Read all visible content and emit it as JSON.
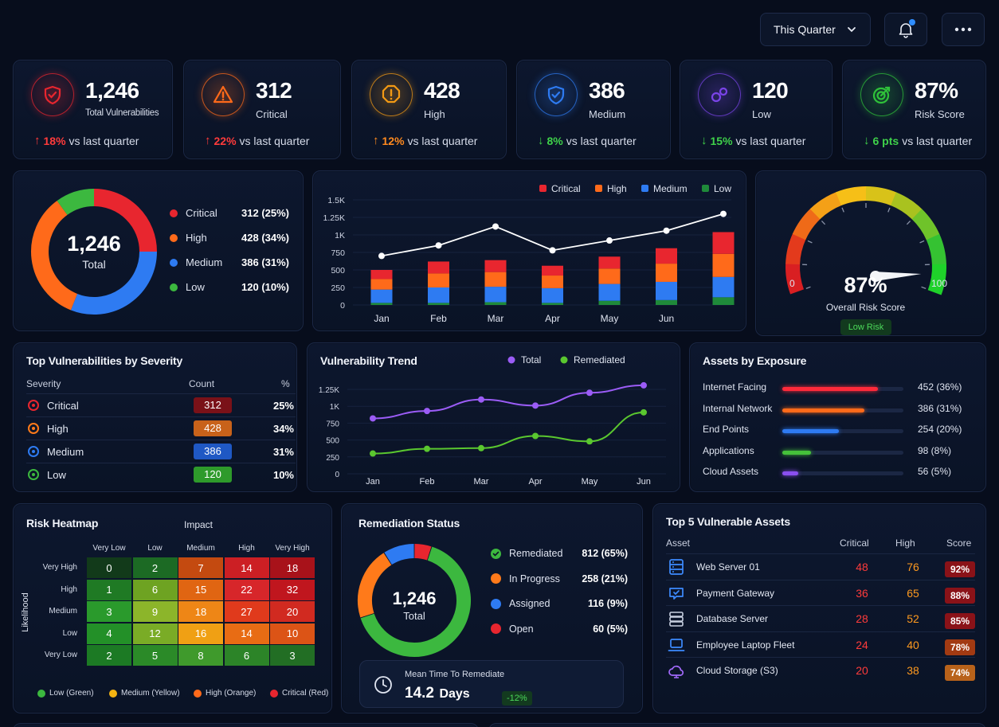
{
  "header": {
    "period": "This Quarter"
  },
  "kpis": [
    {
      "value": "1,246",
      "label": "Total Vulnerabilities",
      "trend_pct": "18%",
      "trend_text": "vs last quarter",
      "direction": "up",
      "color": "#e8262f",
      "trend_color": "#ff3b3b",
      "icon": "shield-alert-icon"
    },
    {
      "value": "312",
      "label": "Critical",
      "trend_pct": "22%",
      "trend_text": "vs last quarter",
      "direction": "up",
      "color": "#ff6a1a",
      "trend_color": "#ff3b3b",
      "icon": "warning-triangle-icon"
    },
    {
      "value": "428",
      "label": "High",
      "trend_pct": "12%",
      "trend_text": "vs last quarter",
      "direction": "up",
      "color": "#f39a14",
      "trend_color": "#ff8a1f",
      "icon": "alert-octagon-icon"
    },
    {
      "value": "386",
      "label": "Medium",
      "trend_pct": "8%",
      "trend_text": "vs last quarter",
      "direction": "down",
      "color": "#2e7bf2",
      "trend_color": "#3fd14a",
      "icon": "shield-check-icon"
    },
    {
      "value": "120",
      "label": "Low",
      "trend_pct": "15%",
      "trend_text": "vs last quarter",
      "direction": "down",
      "color": "#7a44e8",
      "trend_color": "#3fd14a",
      "icon": "bubbles-icon"
    },
    {
      "value": "87%",
      "label": "Risk Score",
      "trend_pct": "6 pts",
      "trend_text": "vs last quarter",
      "direction": "down",
      "color": "#2fc23a",
      "trend_color": "#3fd14a",
      "icon": "target-icon"
    }
  ],
  "severity_donut": {
    "center_value": "1,246",
    "center_label": "Total",
    "items": [
      {
        "label": "Critical",
        "value": "312 (25%)",
        "share": 25,
        "color": "#e8262f"
      },
      {
        "label": "High",
        "value": "428 (34%)",
        "share": 34,
        "color": "#ff6a1a"
      },
      {
        "label": "Medium",
        "value": "386 (31%)",
        "share": 31,
        "color": "#2e7bf2"
      },
      {
        "label": "Low",
        "value": "120 (10%)",
        "share": 10,
        "color": "#3cb83f"
      }
    ]
  },
  "chart_data": [
    {
      "type": "bar",
      "stacked": true,
      "categories": [
        "Jan",
        "Feb",
        "Mar",
        "Apr",
        "May",
        "Jun",
        ""
      ],
      "yticks": [
        "0",
        "250",
        "500",
        "750",
        "1K",
        "1.25K",
        "1.5K"
      ],
      "ylim": [
        0,
        1500
      ],
      "legend": "top-right",
      "series": [
        {
          "name": "Critical",
          "color": "#e8262f",
          "values": [
            130,
            170,
            170,
            140,
            170,
            220,
            310
          ]
        },
        {
          "name": "High",
          "color": "#ff6a1a",
          "values": [
            150,
            200,
            210,
            180,
            220,
            260,
            330
          ]
        },
        {
          "name": "Medium",
          "color": "#2e7bf2",
          "values": [
            190,
            220,
            220,
            210,
            240,
            260,
            290
          ]
        },
        {
          "name": "Low",
          "color": "#1f8a3a",
          "values": [
            30,
            30,
            40,
            30,
            60,
            70,
            110
          ]
        }
      ],
      "line": {
        "values": [
          700,
          850,
          1120,
          780,
          920,
          1060,
          1300
        ],
        "color": "#ffffff"
      }
    },
    {
      "type": "line",
      "title": "Vulnerability Trend",
      "categories": [
        "Jan",
        "Feb",
        "Mar",
        "Apr",
        "May",
        "Jun"
      ],
      "yticks": [
        "0",
        "250",
        "500",
        "750",
        "1K",
        "1.25K"
      ],
      "ylim": [
        0,
        1250
      ],
      "legend": "top-right",
      "series": [
        {
          "name": "Total",
          "color": "#9b5cf6",
          "values": [
            820,
            930,
            1100,
            1010,
            1200,
            1310
          ]
        },
        {
          "name": "Remediated",
          "color": "#5ac72f",
          "values": [
            300,
            370,
            380,
            560,
            480,
            910
          ]
        }
      ]
    }
  ],
  "risk_gauge": {
    "value": 87,
    "value_label": "87%",
    "label": "Overall Risk Score",
    "min": "0",
    "max": "100",
    "badge": "Low Risk"
  },
  "top_vulns": {
    "title": "Top Vulnerabilities by Severity",
    "headers": {
      "severity": "Severity",
      "count": "Count",
      "pct": "%"
    },
    "rows": [
      {
        "severity": "Critical",
        "count": "312",
        "pct": "25%",
        "color": "#e8262f",
        "badge_bg": "#7a1118"
      },
      {
        "severity": "High",
        "count": "428",
        "pct": "34%",
        "color": "#ff7a1a",
        "badge_bg": "#c8621a"
      },
      {
        "severity": "Medium",
        "count": "386",
        "pct": "31%",
        "color": "#2e7bf2",
        "badge_bg": "#1f58c4"
      },
      {
        "severity": "Low",
        "count": "120",
        "pct": "10%",
        "color": "#3cb83f",
        "badge_bg": "#2e9a2b"
      }
    ]
  },
  "exposure": {
    "title": "Assets by Exposure",
    "rows": [
      {
        "label": "Internet Facing",
        "value": "452 (36%)",
        "share": 0.79,
        "color": "#ff2a3a"
      },
      {
        "label": "Internal Network",
        "value": "386 (31%)",
        "share": 0.68,
        "color": "#ff6a1a"
      },
      {
        "label": "End Points",
        "value": "254 (20%)",
        "share": 0.47,
        "color": "#2e7bf2"
      },
      {
        "label": "Applications",
        "value": "98 (8%)",
        "share": 0.24,
        "color": "#45c13a"
      },
      {
        "label": "Cloud Assets",
        "value": "56 (5%)",
        "share": 0.13,
        "color": "#8a4ff0"
      }
    ]
  },
  "heatmap": {
    "title": "Risk Heatmap",
    "impact_label": "Impact",
    "likelihood_label": "Likelihood",
    "columns": [
      "Very Low",
      "Low",
      "Medium",
      "High",
      "Very High"
    ],
    "rows": [
      {
        "label": "Very High",
        "values": [
          "0",
          "2",
          "7",
          "14",
          "18"
        ],
        "colors": [
          "#123a1a",
          "#1c6a24",
          "#c44a10",
          "#cc1f24",
          "#a8121a"
        ]
      },
      {
        "label": "High",
        "values": [
          "1",
          "6",
          "15",
          "22",
          "32"
        ],
        "colors": [
          "#1f7a24",
          "#6ea322",
          "#e06512",
          "#d7262a",
          "#c0161e"
        ]
      },
      {
        "label": "Medium",
        "values": [
          "3",
          "9",
          "18",
          "27",
          "20"
        ],
        "colors": [
          "#2a9a2c",
          "#8cb52a",
          "#ee8616",
          "#e03a1c",
          "#d12a20"
        ]
      },
      {
        "label": "Low",
        "values": [
          "4",
          "12",
          "16",
          "14",
          "10"
        ],
        "colors": [
          "#239028",
          "#7aac26",
          "#f0a014",
          "#e86c14",
          "#dc5416"
        ]
      },
      {
        "label": "Very Low",
        "values": [
          "2",
          "5",
          "8",
          "6",
          "3"
        ],
        "colors": [
          "#1c7a24",
          "#2b8a28",
          "#3f9a2c",
          "#2c8428",
          "#226e24"
        ]
      }
    ],
    "legend": [
      {
        "label": "Low (Green)",
        "color": "#3cb83f"
      },
      {
        "label": "Medium (Yellow)",
        "color": "#f4b312"
      },
      {
        "label": "High (Orange)",
        "color": "#ff6a1a"
      },
      {
        "label": "Critical (Red)",
        "color": "#e8262f"
      }
    ]
  },
  "remediation": {
    "title": "Remediation Status",
    "center_value": "1,246",
    "center_label": "Total",
    "items": [
      {
        "label": "Remediated",
        "value": "812 (65%)",
        "share": 65,
        "color": "#3cb83f",
        "icon": "check-circle-icon"
      },
      {
        "label": "In Progress",
        "value": "258 (21%)",
        "share": 21,
        "color": "#ff7a1a",
        "icon": "progress-dot-icon"
      },
      {
        "label": "Assigned",
        "value": "116 (9%)",
        "share": 9,
        "color": "#2e7bf2",
        "icon": "assigned-dot-icon"
      },
      {
        "label": "Open",
        "value": "60 (5%)",
        "share": 5,
        "color": "#e8262f",
        "icon": "open-dot-icon"
      }
    ],
    "mttr_label": "Mean Time To Remediate",
    "mttr_value": "14.2",
    "mttr_unit": "Days",
    "mttr_change": "-12%"
  },
  "assets": {
    "title": "Top 5 Vulnerable Assets",
    "headers": {
      "asset": "Asset",
      "critical": "Critical",
      "high": "High",
      "score": "Score"
    },
    "rows": [
      {
        "name": "Web Server 01",
        "critical": "48",
        "high": "76",
        "score": "92%",
        "score_bg": "#8a1218",
        "icon": "server-icon",
        "icon_color": "#3d8bff"
      },
      {
        "name": "Payment Gateway",
        "critical": "36",
        "high": "65",
        "score": "88%",
        "score_bg": "#8a1218",
        "icon": "card-icon",
        "icon_color": "#3d8bff"
      },
      {
        "name": "Database Server",
        "critical": "28",
        "high": "52",
        "score": "85%",
        "score_bg": "#8a1218",
        "icon": "database-icon",
        "icon_color": "#c8d0e0"
      },
      {
        "name": "Employee Laptop Fleet",
        "critical": "24",
        "high": "40",
        "score": "78%",
        "score_bg": "#a23a12",
        "icon": "laptop-icon",
        "icon_color": "#3d8bff"
      },
      {
        "name": "Cloud Storage (S3)",
        "critical": "20",
        "high": "38",
        "score": "74%",
        "score_bg": "#b8621a",
        "icon": "cloud-icon",
        "icon_color": "#a46bff"
      }
    ]
  }
}
